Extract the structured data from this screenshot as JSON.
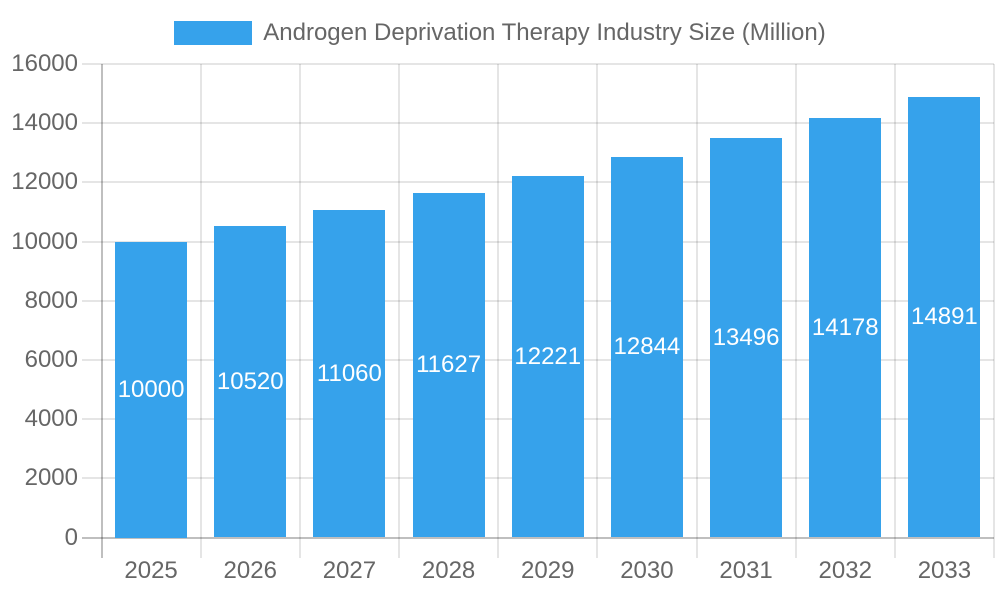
{
  "chart_data": {
    "type": "bar",
    "title": "",
    "legend": {
      "position": "top",
      "items": [
        {
          "label": "Androgen Deprivation Therapy Industry Size (Million)",
          "color": "#36a2eb"
        }
      ]
    },
    "categories": [
      "2025",
      "2026",
      "2027",
      "2028",
      "2029",
      "2030",
      "2031",
      "2032",
      "2033"
    ],
    "series": [
      {
        "name": "Androgen Deprivation Therapy Industry Size (Million)",
        "values": [
          10000,
          10520,
          11060,
          11627,
          12221,
          12844,
          13496,
          14178,
          14891
        ]
      }
    ],
    "bar_value_labels": {
      "visible": true,
      "position": "center-of-bar",
      "color": "#ffffff"
    },
    "xlabel": "",
    "ylabel": "",
    "ylim": [
      0,
      16000
    ],
    "yticks": [
      0,
      2000,
      4000,
      6000,
      8000,
      10000,
      12000,
      14000,
      16000
    ],
    "grid": {
      "horizontal": true,
      "vertical": true,
      "ticks_outside": true,
      "color": "rgba(0,0,0,0.1)",
      "axis_color": "rgba(0,0,0,0.25)"
    },
    "colors": {
      "bar": "#36a2eb",
      "axis_text": "#666666",
      "bar_label": "#ffffff",
      "background": "#ffffff"
    }
  }
}
